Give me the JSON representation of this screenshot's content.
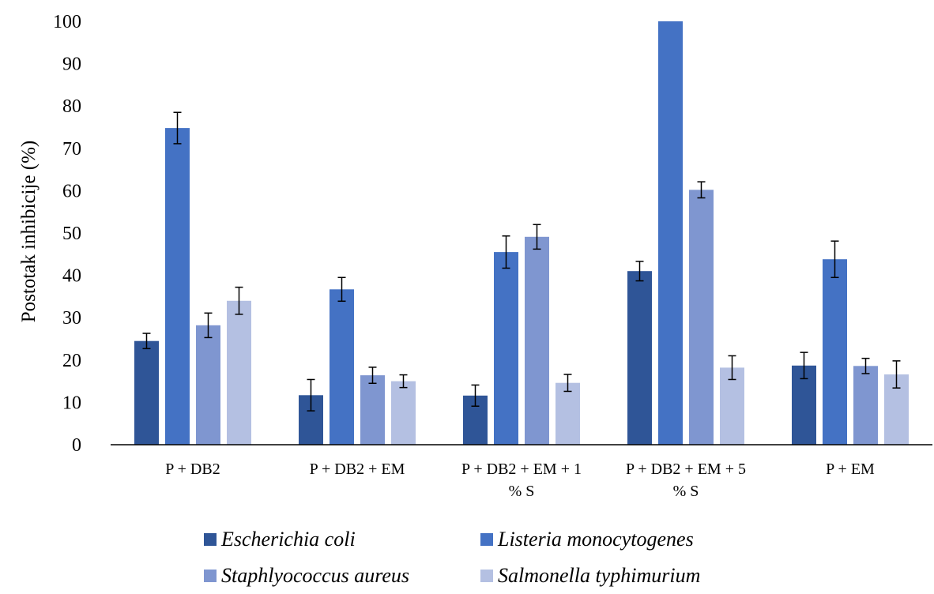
{
  "chart_data": {
    "type": "bar",
    "title": "",
    "xlabel": "",
    "ylabel": "Postotak inhibicije (%)",
    "ylim": [
      0,
      100
    ],
    "yticks": [
      0,
      10,
      20,
      30,
      40,
      50,
      60,
      70,
      80,
      90,
      100
    ],
    "grid": false,
    "legend_position": "bottom",
    "categories": [
      [
        "P + DB2"
      ],
      [
        "P + DB2 + EM"
      ],
      [
        "P + DB2 + EM + 1",
        "% S"
      ],
      [
        "P + DB2 + EM + 5",
        "% S"
      ],
      [
        "P + EM"
      ]
    ],
    "series": [
      {
        "name": "Escherichia coli",
        "color": "#2f5597",
        "values": [
          24.5,
          11.7,
          11.6,
          41.0,
          18.7
        ],
        "errors": [
          1.8,
          3.7,
          2.5,
          2.3,
          3.1
        ]
      },
      {
        "name": "Listeria monocytogenes",
        "color": "#4472c4",
        "values": [
          74.8,
          36.7,
          45.5,
          100,
          43.8
        ],
        "errors": [
          3.7,
          2.8,
          3.8,
          0,
          4.3
        ]
      },
      {
        "name": "Staphlyococcus aureus",
        "color": "#7f96d0",
        "values": [
          28.2,
          16.4,
          49.1,
          60.2,
          18.6
        ],
        "errors": [
          2.9,
          1.9,
          2.9,
          1.9,
          1.8
        ]
      },
      {
        "name": "Salmonella typhimurium",
        "color": "#b4c0e2",
        "values": [
          34.0,
          15.0,
          14.6,
          18.2,
          16.6
        ],
        "errors": [
          3.2,
          1.5,
          2.0,
          2.8,
          3.2
        ]
      }
    ]
  }
}
